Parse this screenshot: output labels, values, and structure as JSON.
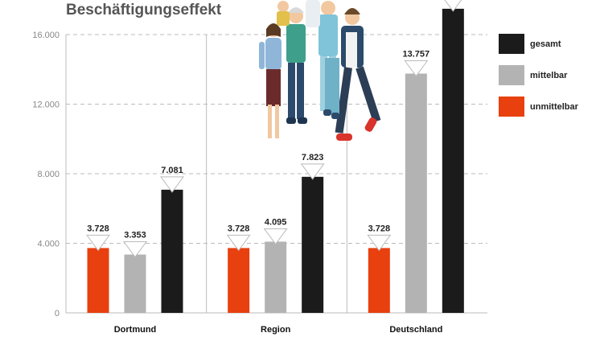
{
  "chart_data": {
    "type": "bar",
    "title": "Beschäftigungseffekt",
    "categories": [
      "Dortmund",
      "Region",
      "Deutschland"
    ],
    "series": [
      {
        "name": "unmittelbar",
        "color": "#e8400f",
        "values": [
          3728,
          3728,
          3728
        ],
        "labels": [
          "3.728",
          "3.728",
          "3.728"
        ]
      },
      {
        "name": "mittelbar",
        "color": "#b3b3b3",
        "values": [
          3353,
          4095,
          13757
        ],
        "labels": [
          "3.353",
          "4.095",
          "13.757"
        ]
      },
      {
        "name": "gesamt",
        "color": "#1b1b1b",
        "values": [
          7081,
          7823,
          17485
        ],
        "labels": [
          "7.081",
          "7.823",
          ""
        ]
      }
    ],
    "yticks": [
      0,
      4000,
      8000,
      12000,
      16000
    ],
    "ytick_labels": [
      "0",
      "4.000",
      "8.000",
      "12.000",
      "16.000"
    ],
    "ylim": [
      0,
      16000
    ],
    "grid": true,
    "legend_order": [
      "gesamt",
      "mittelbar",
      "unmittelbar"
    ],
    "legend_position": "right",
    "illustration_icon": "people-group-icon"
  }
}
